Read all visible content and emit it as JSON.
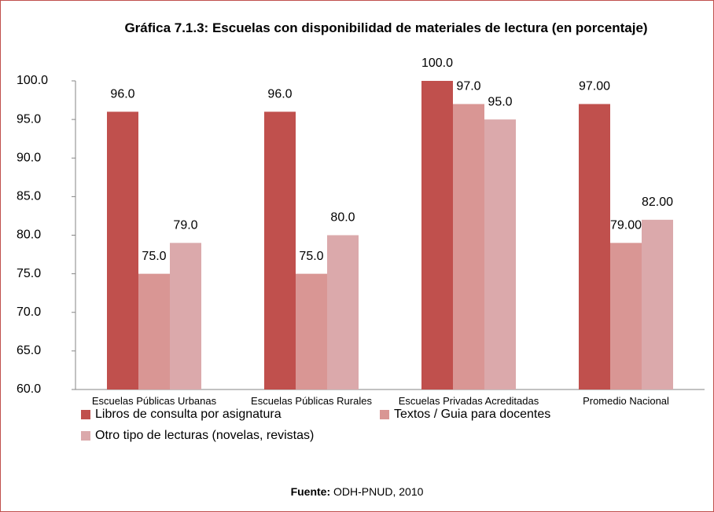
{
  "chart_data": {
    "type": "bar",
    "title": "Gráfica 7.1.3:  Escuelas con disponibilidad de materiales de lectura (en porcentaje)",
    "categories": [
      "Escuelas Públicas Urbanas",
      "Escuelas Públicas Rurales",
      "Escuelas Privadas Acreditadas",
      "Promedio Nacional"
    ],
    "series": [
      {
        "name": "Libros de consulta por asignatura",
        "color": "#c0504d",
        "values": [
          96,
          96,
          100,
          97
        ],
        "value_labels": [
          "96.0",
          "96.0",
          "100.0",
          "97.00"
        ]
      },
      {
        "name": "Textos / Guia para docentes",
        "color": "#d99694",
        "values": [
          75,
          75,
          97,
          79
        ],
        "value_labels": [
          "75.0",
          "75.0",
          "97.0",
          "79.00"
        ]
      },
      {
        "name": "Otro tipo de lecturas (novelas, revistas)",
        "color": "#dba9ab",
        "values": [
          79,
          80,
          95,
          82
        ],
        "value_labels": [
          "79.0",
          "80.0",
          "95.0",
          "82.00"
        ]
      }
    ],
    "ylim": [
      60,
      100
    ],
    "yticks": [
      {
        "value": 60,
        "label": "60.0"
      },
      {
        "value": 65,
        "label": "65.0"
      },
      {
        "value": 70,
        "label": "70.0"
      },
      {
        "value": 75,
        "label": "75.0"
      },
      {
        "value": 80,
        "label": "80.0"
      },
      {
        "value": 85,
        "label": "85.0"
      },
      {
        "value": 90,
        "label": "90.0"
      },
      {
        "value": 95,
        "label": "95.0"
      },
      {
        "value": 100,
        "label": "100.0"
      }
    ],
    "grid": false,
    "legend": "bottom",
    "source": {
      "label": "Fuente:",
      "text": "ODH-PNUD, 2010"
    }
  }
}
